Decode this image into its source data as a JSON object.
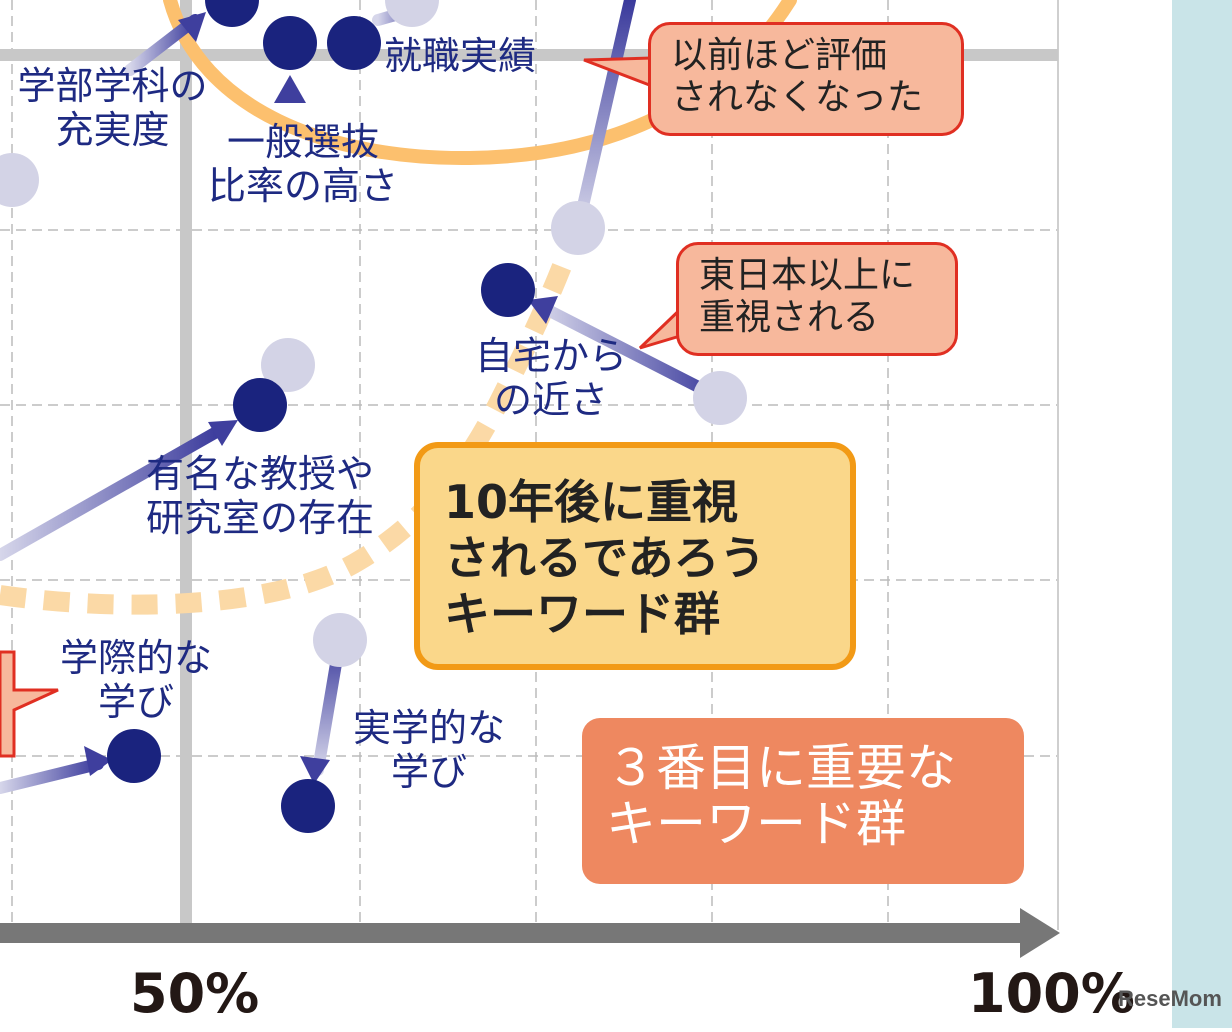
{
  "chart_data": {
    "type": "scatter",
    "x_ticks": [
      "50%",
      "100%"
    ],
    "points": [
      {
        "name": "学部学科の\n充実度"
      },
      {
        "name": "一般選抜\n比率の高さ"
      },
      {
        "name": "就職実績"
      },
      {
        "name": "自宅から\nの近さ"
      },
      {
        "name": "有名な教授や\n研究室の存在"
      },
      {
        "name": "学際的な\n学び"
      },
      {
        "name": "実学的な\n学び"
      }
    ],
    "annotations": {
      "callout_1": "以前ほど評価\nされなくなった",
      "callout_2": "東日本以上に\n重視される",
      "group_10yr": "10年後に重視\nされるであろう\nキーワード群",
      "group_3rd": "３番目に重要な\nキーワード群"
    },
    "colors": {
      "current_point": "#1a237e",
      "past_point": "#d3d3e6",
      "arrow": "#3f3f9e",
      "grid_major": "#c8c8c8",
      "grid_minor": "#bbbbbb",
      "axis": "#777777",
      "orange_curve": "#fcc06e"
    },
    "watermark": "ReseMom"
  }
}
